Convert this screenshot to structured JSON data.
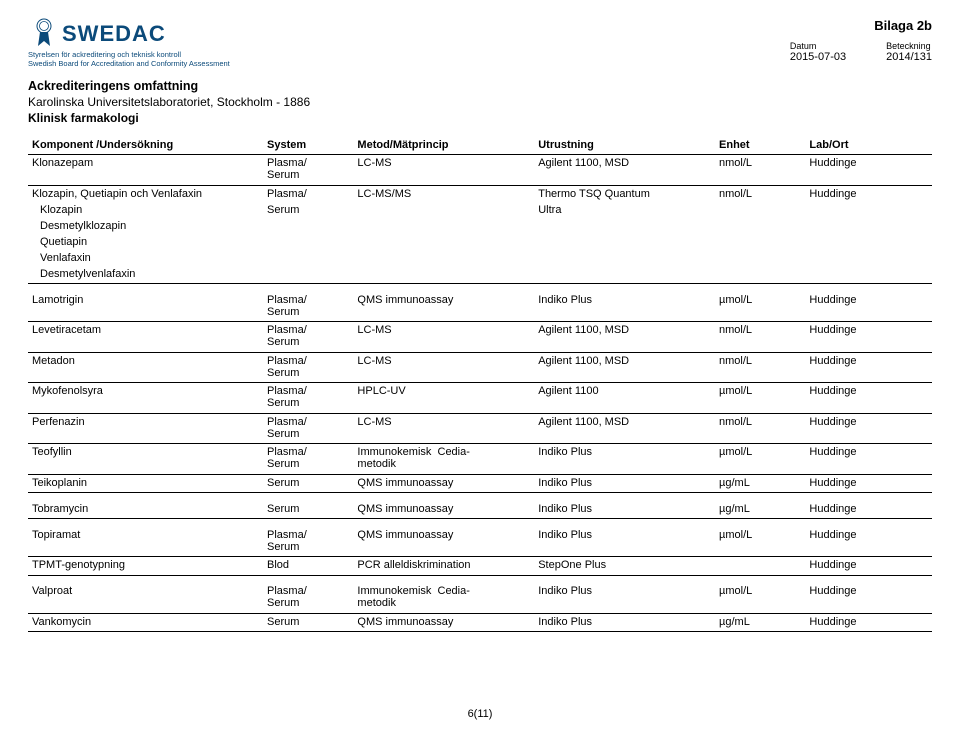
{
  "logo": {
    "text": "SWEDAC",
    "color": "#0b4a7a",
    "sub1": "Styrelsen för ackreditering och teknisk kontroll",
    "sub2": "Swedish Board for Accreditation and Conformity Assessment"
  },
  "bilaga": "Bilaga 2b",
  "dateLabel": "Datum",
  "dateVal": "2015-07-03",
  "betLabel": "Beteckning",
  "betVal": "2014/131",
  "org": {
    "title": "Ackrediteringens omfattning",
    "line1": "Karolinska Universitetslaboratoriet, Stockholm - 1886",
    "line2": "Klinisk farmakologi"
  },
  "cols": [
    "Komponent /Undersökning",
    "System",
    "Metod/Mätprincip",
    "Utrustning",
    "Enhet",
    "Lab/Ort"
  ],
  "rows": [
    {
      "c": [
        "Klonazepam",
        "Plasma/ Serum",
        "LC-MS",
        "Agilent 1100, MSD",
        "nmol/L",
        "Huddinge"
      ],
      "sep": true
    },
    {
      "c": [
        "Klozapin, Quetiapin och Venlafaxin",
        "Plasma/",
        "LC-MS/MS",
        "Thermo TSQ Quantum",
        "nmol/L",
        "Huddinge"
      ]
    },
    {
      "c": [
        "Klozapin",
        "Serum",
        "",
        "Ultra",
        "",
        ""
      ],
      "sub": true
    },
    {
      "c": [
        "Desmetylklozapin",
        "",
        "",
        "",
        "",
        ""
      ],
      "sub": true
    },
    {
      "c": [
        "Quetiapin",
        "",
        "",
        "",
        "",
        ""
      ],
      "sub": true
    },
    {
      "c": [
        "Venlafaxin",
        "",
        "",
        "",
        "",
        ""
      ],
      "sub": true
    },
    {
      "c": [
        "Desmetylvenlafaxin",
        "",
        "",
        "",
        "",
        ""
      ],
      "sub": true,
      "sep": true,
      "gapAfter": true
    },
    {
      "c": [
        "Lamotrigin",
        "Plasma/ Serum",
        "QMS immunoassay",
        "Indiko Plus",
        "µmol/L",
        "Huddinge"
      ],
      "sep": true
    },
    {
      "c": [
        "Levetiracetam",
        "Plasma/ Serum",
        "LC-MS",
        "Agilent 1100, MSD",
        "nmol/L",
        "Huddinge"
      ],
      "sep": true
    },
    {
      "c": [
        "Metadon",
        "Plasma/ Serum",
        "LC-MS",
        "Agilent 1100, MSD",
        "nmol/L",
        "Huddinge"
      ],
      "sep": true
    },
    {
      "c": [
        "Mykofenolsyra",
        "Plasma/ Serum",
        "HPLC-UV",
        "Agilent 1100",
        "µmol/L",
        "Huddinge"
      ],
      "sep": true
    },
    {
      "c": [
        "Perfenazin",
        "Plasma/ Serum",
        "LC-MS",
        "Agilent 1100, MSD",
        "nmol/L",
        "Huddinge"
      ],
      "sep": true
    },
    {
      "c": [
        "Teofyllin",
        "Plasma/ Serum",
        "Immunokemisk Cedia-metodik",
        "Indiko Plus",
        "µmol/L",
        "Huddinge"
      ],
      "sep": true
    },
    {
      "c": [
        "Teikoplanin",
        "Serum",
        "QMS immunoassay",
        "Indiko Plus",
        "µg/mL",
        "Huddinge"
      ],
      "sep": true,
      "gapAfter": true
    },
    {
      "c": [
        "Tobramycin",
        "Serum",
        "QMS immunoassay",
        "Indiko Plus",
        "µg/mL",
        "Huddinge"
      ],
      "sep": true,
      "gapAfter": true
    },
    {
      "c": [
        "Topiramat",
        "Plasma/ Serum",
        "QMS immunoassay",
        "Indiko Plus",
        "µmol/L",
        "Huddinge"
      ],
      "sep": true
    },
    {
      "c": [
        "TPMT-genotypning",
        "Blod",
        "PCR alleldiskrimination",
        "StepOne Plus",
        "",
        "Huddinge"
      ],
      "sep": true,
      "gapAfter": true
    },
    {
      "c": [
        "Valproat",
        "Plasma/ Serum",
        "Immunokemisk Cedia-metodik",
        "Indiko Plus",
        "µmol/L",
        "Huddinge"
      ],
      "sep": true
    },
    {
      "c": [
        "Vankomycin",
        "Serum",
        "QMS immunoassay",
        "Indiko Plus",
        "µg/mL",
        "Huddinge"
      ],
      "sep": true
    }
  ],
  "pageNum": "6(11)",
  "style": {
    "page_bg": "#ffffff",
    "text_color": "#000000",
    "border_color": "#000000",
    "logo_color": "#0b4a7a",
    "font_size_body": 11,
    "font_size_header": 12.5
  }
}
